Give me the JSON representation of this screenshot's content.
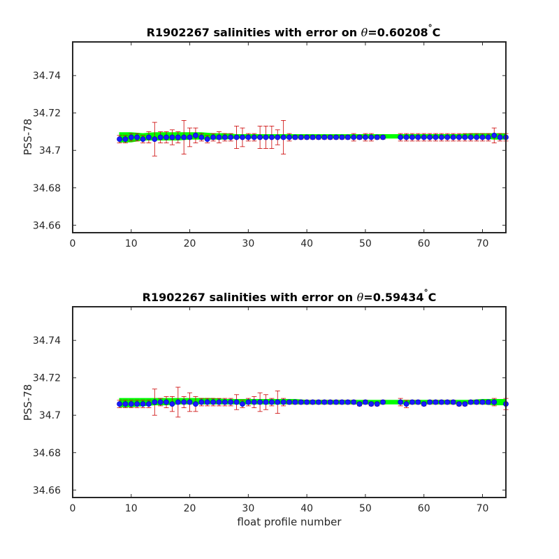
{
  "chart_data": [
    {
      "type": "scatter",
      "title_prefix": "R1902267 salinities with error on ",
      "title_theta": "θ",
      "title_suffix": "=0.60208",
      "title_degree": "°",
      "title_unit": "C",
      "xlabel": "",
      "ylabel": "PSS-78",
      "xlim": [
        0,
        74
      ],
      "ylim": [
        34.656,
        34.758
      ],
      "xticks": [
        0,
        10,
        20,
        30,
        40,
        50,
        60,
        70
      ],
      "yticks": [
        34.66,
        34.68,
        34.7,
        34.72,
        34.74
      ],
      "ytick_labels": [
        "34.66",
        "34.68",
        "34.7",
        "34.72",
        "34.74"
      ],
      "grid": false,
      "colors": {
        "marker": "#1a1aff",
        "error_bar": "#cc0000",
        "band": "#00ff00"
      },
      "x": [
        8,
        9,
        10,
        11,
        12,
        13,
        14,
        15,
        16,
        17,
        18,
        19,
        20,
        21,
        22,
        23,
        24,
        25,
        26,
        27,
        28,
        29,
        30,
        31,
        32,
        33,
        34,
        35,
        36,
        37,
        38,
        39,
        40,
        41,
        42,
        43,
        44,
        45,
        46,
        47,
        48,
        49,
        50,
        51,
        52,
        53,
        56,
        57,
        58,
        59,
        60,
        61,
        62,
        63,
        64,
        65,
        66,
        67,
        68,
        69,
        70,
        71,
        72,
        73,
        74
      ],
      "y": [
        34.706,
        34.706,
        34.707,
        34.707,
        34.706,
        34.707,
        34.706,
        34.707,
        34.707,
        34.707,
        34.707,
        34.707,
        34.707,
        34.708,
        34.707,
        34.706,
        34.707,
        34.707,
        34.707,
        34.707,
        34.707,
        34.707,
        34.707,
        34.707,
        34.707,
        34.707,
        34.707,
        34.707,
        34.707,
        34.707,
        34.707,
        34.707,
        34.707,
        34.707,
        34.707,
        34.707,
        34.707,
        34.707,
        34.707,
        34.707,
        34.707,
        34.707,
        34.707,
        34.707,
        34.707,
        34.707,
        34.707,
        34.707,
        34.707,
        34.707,
        34.707,
        34.707,
        34.707,
        34.707,
        34.707,
        34.707,
        34.707,
        34.707,
        34.707,
        34.707,
        34.707,
        34.707,
        34.708,
        34.707,
        34.707
      ],
      "error": [
        0.002,
        0.002,
        0.002,
        0.002,
        0.002,
        0.003,
        0.009,
        0.003,
        0.003,
        0.004,
        0.003,
        0.009,
        0.005,
        0.004,
        0.002,
        0.002,
        0.002,
        0.003,
        0.002,
        0.002,
        0.006,
        0.005,
        0.002,
        0.002,
        0.006,
        0.006,
        0.006,
        0.004,
        0.009,
        0.002,
        0.001,
        0.001,
        0.001,
        0.001,
        0.001,
        0.001,
        0.001,
        0.001,
        0.001,
        0.001,
        0.002,
        0.001,
        0.002,
        0.002,
        0.001,
        0.001,
        0.002,
        0.002,
        0.002,
        0.002,
        0.002,
        0.002,
        0.002,
        0.002,
        0.002,
        0.002,
        0.002,
        0.002,
        0.002,
        0.002,
        0.002,
        0.002,
        0.004,
        0.002,
        0.002
      ],
      "band": {
        "x": [
          8,
          10,
          12,
          14,
          16,
          18,
          20,
          22,
          24,
          26,
          28,
          30,
          32,
          34,
          36,
          38,
          40,
          42,
          44,
          46,
          48,
          50,
          52,
          54,
          56,
          58,
          60,
          62,
          64,
          66,
          68,
          70,
          72,
          74
        ],
        "upper": [
          34.7095,
          34.7095,
          34.709,
          34.7095,
          34.7095,
          34.7095,
          34.7095,
          34.7095,
          34.709,
          34.709,
          34.7085,
          34.7085,
          34.7085,
          34.7085,
          34.7085,
          34.7085,
          34.7085,
          34.7085,
          34.7085,
          34.7085,
          34.7085,
          34.7085,
          34.7085,
          34.7085,
          34.7085,
          34.7085,
          34.7085,
          34.7085,
          34.7085,
          34.7085,
          34.709,
          34.709,
          34.709,
          34.709
        ],
        "lower": [
          34.7045,
          34.7045,
          34.7055,
          34.7055,
          34.7055,
          34.7055,
          34.706,
          34.706,
          34.706,
          34.706,
          34.7065,
          34.7065,
          34.7065,
          34.7065,
          34.7065,
          34.7065,
          34.7065,
          34.7065,
          34.7065,
          34.7065,
          34.7065,
          34.7065,
          34.7065,
          34.7065,
          34.7065,
          34.7065,
          34.7065,
          34.7065,
          34.7065,
          34.7065,
          34.7065,
          34.7065,
          34.706,
          34.706
        ]
      }
    },
    {
      "type": "scatter",
      "title_prefix": "R1902267 salinities with error on ",
      "title_theta": "θ",
      "title_suffix": "=0.59434",
      "title_degree": "°",
      "title_unit": "C",
      "xlabel": "float profile number",
      "ylabel": "PSS-78",
      "xlim": [
        0,
        74
      ],
      "ylim": [
        34.656,
        34.758
      ],
      "xticks": [
        0,
        10,
        20,
        30,
        40,
        50,
        60,
        70
      ],
      "yticks": [
        34.66,
        34.68,
        34.7,
        34.72,
        34.74
      ],
      "ytick_labels": [
        "34.66",
        "34.68",
        "34.7",
        "34.72",
        "34.74"
      ],
      "grid": false,
      "colors": {
        "marker": "#1a1aff",
        "error_bar": "#cc0000",
        "band": "#00ff00"
      },
      "x": [
        8,
        9,
        10,
        11,
        12,
        13,
        14,
        15,
        16,
        17,
        18,
        19,
        20,
        21,
        22,
        23,
        24,
        25,
        26,
        27,
        28,
        29,
        30,
        31,
        32,
        33,
        34,
        35,
        36,
        37,
        38,
        39,
        40,
        41,
        42,
        43,
        44,
        45,
        46,
        47,
        48,
        49,
        50,
        51,
        52,
        53,
        56,
        57,
        58,
        59,
        60,
        61,
        62,
        63,
        64,
        65,
        66,
        67,
        68,
        69,
        70,
        71,
        72,
        74
      ],
      "y": [
        34.706,
        34.706,
        34.706,
        34.706,
        34.706,
        34.706,
        34.707,
        34.707,
        34.707,
        34.706,
        34.707,
        34.707,
        34.707,
        34.706,
        34.707,
        34.707,
        34.707,
        34.707,
        34.707,
        34.707,
        34.707,
        34.706,
        34.707,
        34.707,
        34.707,
        34.707,
        34.707,
        34.707,
        34.707,
        34.707,
        34.707,
        34.707,
        34.707,
        34.707,
        34.707,
        34.707,
        34.707,
        34.707,
        34.707,
        34.707,
        34.707,
        34.706,
        34.707,
        34.706,
        34.706,
        34.707,
        34.707,
        34.706,
        34.707,
        34.707,
        34.706,
        34.707,
        34.707,
        34.707,
        34.707,
        34.707,
        34.706,
        34.706,
        34.707,
        34.707,
        34.707,
        34.707,
        34.707,
        34.706
      ],
      "error": [
        0.002,
        0.002,
        0.002,
        0.002,
        0.002,
        0.002,
        0.007,
        0.002,
        0.003,
        0.004,
        0.008,
        0.003,
        0.005,
        0.004,
        0.002,
        0.002,
        0.002,
        0.002,
        0.002,
        0.002,
        0.004,
        0.002,
        0.002,
        0.003,
        0.005,
        0.004,
        0.002,
        0.006,
        0.002,
        0.001,
        0.001,
        0.001,
        0.001,
        0.001,
        0.001,
        0.001,
        0.001,
        0.001,
        0.001,
        0.001,
        0.001,
        0.001,
        0.001,
        0.001,
        0.001,
        0.001,
        0.002,
        0.002,
        0.001,
        0.001,
        0.001,
        0.001,
        0.001,
        0.001,
        0.001,
        0.001,
        0.001,
        0.001,
        0.001,
        0.001,
        0.001,
        0.001,
        0.002,
        0.003
      ],
      "band": {
        "x": [
          8,
          10,
          12,
          14,
          16,
          18,
          20,
          22,
          24,
          26,
          28,
          30,
          32,
          34,
          36,
          38,
          40,
          42,
          44,
          46,
          48,
          50,
          52,
          54,
          56,
          58,
          60,
          62,
          64,
          66,
          68,
          70,
          72,
          74
        ],
        "upper": [
          34.709,
          34.709,
          34.709,
          34.709,
          34.709,
          34.709,
          34.709,
          34.709,
          34.709,
          34.7085,
          34.7085,
          34.7085,
          34.7085,
          34.7085,
          34.7085,
          34.7085,
          34.708,
          34.708,
          34.708,
          34.708,
          34.708,
          34.708,
          34.708,
          34.708,
          34.708,
          34.708,
          34.708,
          34.708,
          34.708,
          34.708,
          34.708,
          34.7085,
          34.7085,
          34.7085
        ],
        "lower": [
          34.7045,
          34.7045,
          34.705,
          34.7055,
          34.7055,
          34.706,
          34.706,
          34.706,
          34.706,
          34.706,
          34.706,
          34.706,
          34.706,
          34.706,
          34.706,
          34.706,
          34.706,
          34.706,
          34.706,
          34.706,
          34.706,
          34.706,
          34.706,
          34.706,
          34.706,
          34.706,
          34.706,
          34.706,
          34.706,
          34.706,
          34.706,
          34.706,
          34.7055,
          34.7055
        ]
      }
    }
  ]
}
